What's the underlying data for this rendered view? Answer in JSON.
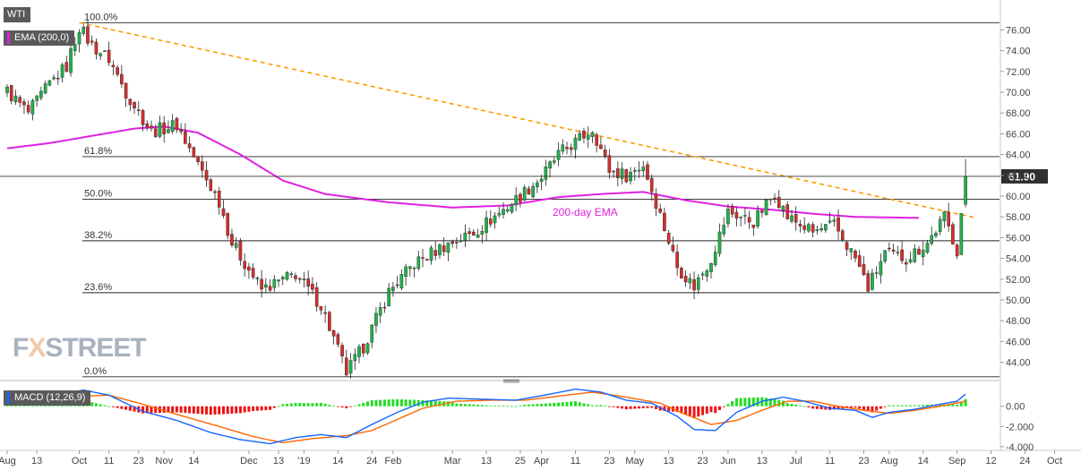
{
  "symbol": "WTI",
  "indicators": {
    "ema_label": "EMA (200,0)",
    "ema_color": "#e020e0",
    "macd_label": "MACD (12,26,9)",
    "macd_color": "#1565ff"
  },
  "watermark": "FXSTREET",
  "price_label": "61.90",
  "ema_annotation": "200-day EMA",
  "chart_data": [
    {
      "type": "candlestick",
      "title": "WTI",
      "x_ticks": [
        "Aug",
        "13",
        "Oct",
        "11",
        "23",
        "Nov",
        "14",
        "Dec",
        "13",
        "'19",
        "14",
        "24",
        "Feb",
        "Mar",
        "13",
        "25",
        "Apr",
        "11",
        "23",
        "May",
        "13",
        "23",
        "Jun",
        "13",
        "Jul",
        "11",
        "23",
        "Aug",
        "14",
        "Sep",
        "12",
        "24",
        "Oct"
      ],
      "y_ticks": [
        "44.00",
        "46.00",
        "48.00",
        "50.00",
        "52.00",
        "54.00",
        "56.00",
        "58.00",
        "60.00",
        "62.00",
        "64.00",
        "66.00",
        "68.00",
        "70.00",
        "72.00",
        "74.00",
        "76.00"
      ],
      "ylim": [
        42.5,
        77.5
      ],
      "last_price": 61.9,
      "fibonacci_levels": [
        {
          "label": "100.0%",
          "value": 76.7
        },
        {
          "label": "61.8%",
          "value": 63.8
        },
        {
          "label": "50.0%",
          "value": 59.7
        },
        {
          "label": "38.2%",
          "value": 55.7
        },
        {
          "label": "23.6%",
          "value": 50.7
        },
        {
          "label": "0.0%",
          "value": 42.6
        }
      ],
      "trendline": {
        "style": "dashed",
        "color": "#ff9900",
        "from": {
          "bar": 17,
          "value": 76.7
        },
        "to": {
          "bar": 224,
          "value": 58.3
        }
      },
      "ema_200": [
        {
          "bar": 0,
          "value": 64.6
        },
        {
          "bar": 10,
          "value": 65.1
        },
        {
          "bar": 20,
          "value": 65.8
        },
        {
          "bar": 30,
          "value": 66.5
        },
        {
          "bar": 37,
          "value": 66.7
        },
        {
          "bar": 45,
          "value": 66.1
        },
        {
          "bar": 55,
          "value": 64.0
        },
        {
          "bar": 65,
          "value": 61.5
        },
        {
          "bar": 75,
          "value": 60.2
        },
        {
          "bar": 90,
          "value": 59.4
        },
        {
          "bar": 105,
          "value": 58.9
        },
        {
          "bar": 118,
          "value": 59.1
        },
        {
          "bar": 130,
          "value": 59.9
        },
        {
          "bar": 140,
          "value": 60.2
        },
        {
          "bar": 150,
          "value": 60.4
        },
        {
          "bar": 160,
          "value": 59.6
        },
        {
          "bar": 170,
          "value": 59.0
        },
        {
          "bar": 180,
          "value": 58.7
        },
        {
          "bar": 190,
          "value": 58.3
        },
        {
          "bar": 200,
          "value": 58.0
        },
        {
          "bar": 215,
          "value": 57.9
        }
      ],
      "price_path": [
        {
          "bar": 0,
          "value": 70.1
        },
        {
          "bar": 5,
          "value": 68.0
        },
        {
          "bar": 10,
          "value": 70.8
        },
        {
          "bar": 14,
          "value": 72.5
        },
        {
          "bar": 17,
          "value": 76.3
        },
        {
          "bar": 20,
          "value": 74.5
        },
        {
          "bar": 24,
          "value": 73.2
        },
        {
          "bar": 28,
          "value": 70.0
        },
        {
          "bar": 34,
          "value": 66.2
        },
        {
          "bar": 40,
          "value": 66.9
        },
        {
          "bar": 45,
          "value": 63.0
        },
        {
          "bar": 50,
          "value": 59.5
        },
        {
          "bar": 53,
          "value": 55.5
        },
        {
          "bar": 60,
          "value": 51.0
        },
        {
          "bar": 68,
          "value": 52.5
        },
        {
          "bar": 74,
          "value": 49.5
        },
        {
          "bar": 78,
          "value": 45.2
        },
        {
          "bar": 80,
          "value": 43.0
        },
        {
          "bar": 84,
          "value": 45.5
        },
        {
          "bar": 90,
          "value": 50.8
        },
        {
          "bar": 96,
          "value": 53.5
        },
        {
          "bar": 102,
          "value": 55.0
        },
        {
          "bar": 110,
          "value": 56.5
        },
        {
          "bar": 118,
          "value": 59.0
        },
        {
          "bar": 126,
          "value": 61.8
        },
        {
          "bar": 130,
          "value": 64.0
        },
        {
          "bar": 135,
          "value": 65.5
        },
        {
          "bar": 138,
          "value": 66.5
        },
        {
          "bar": 142,
          "value": 62.5
        },
        {
          "bar": 146,
          "value": 62.0
        },
        {
          "bar": 150,
          "value": 63.0
        },
        {
          "bar": 154,
          "value": 58.2
        },
        {
          "bar": 158,
          "value": 53.2
        },
        {
          "bar": 162,
          "value": 51.3
        },
        {
          "bar": 166,
          "value": 54.0
        },
        {
          "bar": 170,
          "value": 58.5
        },
        {
          "bar": 176,
          "value": 57.5
        },
        {
          "bar": 181,
          "value": 60.3
        },
        {
          "bar": 184,
          "value": 58.0
        },
        {
          "bar": 190,
          "value": 56.5
        },
        {
          "bar": 195,
          "value": 57.2
        },
        {
          "bar": 200,
          "value": 54.0
        },
        {
          "bar": 203,
          "value": 51.2
        },
        {
          "bar": 207,
          "value": 54.5
        },
        {
          "bar": 212,
          "value": 54.0
        },
        {
          "bar": 217,
          "value": 55.5
        },
        {
          "bar": 221,
          "value": 58.0
        },
        {
          "bar": 224,
          "value": 54.8
        },
        {
          "bar": 226,
          "value": 61.9
        }
      ]
    },
    {
      "type": "macd",
      "title": "MACD (12,26,9)",
      "y_ticks": [
        "-4.000",
        "-2.000",
        "0.00"
      ],
      "ylim": [
        -4.1,
        2.1
      ],
      "macd_line": [
        {
          "bar": 0,
          "value": 0.3
        },
        {
          "bar": 8,
          "value": 0.4
        },
        {
          "bar": 14,
          "value": 1.3
        },
        {
          "bar": 18,
          "value": 1.6
        },
        {
          "bar": 24,
          "value": 1.1
        },
        {
          "bar": 32,
          "value": -0.5
        },
        {
          "bar": 40,
          "value": -1.4
        },
        {
          "bar": 48,
          "value": -2.6
        },
        {
          "bar": 55,
          "value": -3.3
        },
        {
          "bar": 62,
          "value": -3.7
        },
        {
          "bar": 68,
          "value": -3.1
        },
        {
          "bar": 74,
          "value": -2.8
        },
        {
          "bar": 80,
          "value": -3.1
        },
        {
          "bar": 86,
          "value": -1.8
        },
        {
          "bar": 92,
          "value": -0.6
        },
        {
          "bar": 98,
          "value": 0.4
        },
        {
          "bar": 104,
          "value": 0.8
        },
        {
          "bar": 112,
          "value": 0.7
        },
        {
          "bar": 120,
          "value": 0.6
        },
        {
          "bar": 128,
          "value": 1.2
        },
        {
          "bar": 134,
          "value": 1.7
        },
        {
          "bar": 140,
          "value": 1.4
        },
        {
          "bar": 146,
          "value": 0.6
        },
        {
          "bar": 152,
          "value": 0.3
        },
        {
          "bar": 158,
          "value": -1.0
        },
        {
          "bar": 162,
          "value": -2.3
        },
        {
          "bar": 167,
          "value": -2.4
        },
        {
          "bar": 172,
          "value": -0.6
        },
        {
          "bar": 178,
          "value": 0.5
        },
        {
          "bar": 183,
          "value": 0.9
        },
        {
          "bar": 188,
          "value": 0.5
        },
        {
          "bar": 194,
          "value": -0.2
        },
        {
          "bar": 200,
          "value": -0.4
        },
        {
          "bar": 204,
          "value": -1.1
        },
        {
          "bar": 208,
          "value": -0.6
        },
        {
          "bar": 214,
          "value": -0.3
        },
        {
          "bar": 220,
          "value": 0.2
        },
        {
          "bar": 224,
          "value": 0.5
        },
        {
          "bar": 226,
          "value": 1.2
        }
      ],
      "signal_line": [
        {
          "bar": 0,
          "value": 0.2
        },
        {
          "bar": 10,
          "value": 0.3
        },
        {
          "bar": 17,
          "value": 1.0
        },
        {
          "bar": 24,
          "value": 1.1
        },
        {
          "bar": 32,
          "value": 0.2
        },
        {
          "bar": 40,
          "value": -0.8
        },
        {
          "bar": 50,
          "value": -2.0
        },
        {
          "bar": 58,
          "value": -3.0
        },
        {
          "bar": 65,
          "value": -3.6
        },
        {
          "bar": 72,
          "value": -3.2
        },
        {
          "bar": 80,
          "value": -2.9
        },
        {
          "bar": 86,
          "value": -2.4
        },
        {
          "bar": 92,
          "value": -1.3
        },
        {
          "bar": 98,
          "value": -0.2
        },
        {
          "bar": 106,
          "value": 0.5
        },
        {
          "bar": 114,
          "value": 0.6
        },
        {
          "bar": 122,
          "value": 0.6
        },
        {
          "bar": 130,
          "value": 1.0
        },
        {
          "bar": 138,
          "value": 1.4
        },
        {
          "bar": 146,
          "value": 0.9
        },
        {
          "bar": 154,
          "value": 0.3
        },
        {
          "bar": 160,
          "value": -0.8
        },
        {
          "bar": 166,
          "value": -1.8
        },
        {
          "bar": 172,
          "value": -1.4
        },
        {
          "bar": 178,
          "value": -0.4
        },
        {
          "bar": 184,
          "value": 0.5
        },
        {
          "bar": 190,
          "value": 0.5
        },
        {
          "bar": 196,
          "value": 0.0
        },
        {
          "bar": 202,
          "value": -0.4
        },
        {
          "bar": 208,
          "value": -0.7
        },
        {
          "bar": 214,
          "value": -0.4
        },
        {
          "bar": 220,
          "value": 0.0
        },
        {
          "bar": 226,
          "value": 0.5
        }
      ],
      "histogram_color_up": "#22dd22",
      "histogram_color_down": "#ee1111",
      "signal_color": "#ff6600"
    }
  ]
}
